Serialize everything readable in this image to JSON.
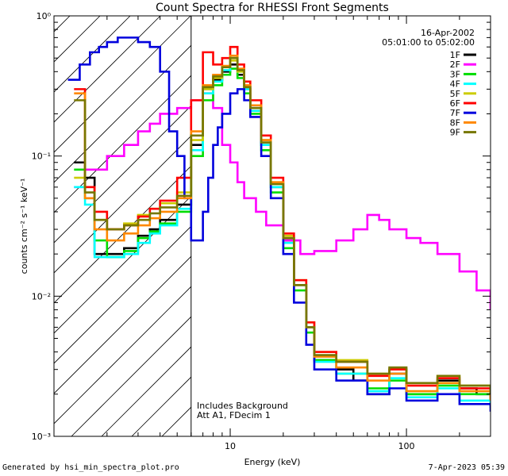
{
  "chart_data": {
    "type": "line",
    "title": "Count Spectra for RHESSI Front Segments",
    "xlabel": "Energy (keV)",
    "ylabel": "counts cm⁻² s⁻¹ keV⁻¹",
    "x_scale": "log",
    "y_scale": "log",
    "xlim": [
      1.0,
      300
    ],
    "ylim": [
      0.001,
      1.0
    ],
    "x_ticks": [
      {
        "value": 10,
        "label": "10"
      },
      {
        "value": 100,
        "label": "100"
      }
    ],
    "y_ticks": [
      {
        "value": 1.0,
        "label": "10⁰"
      },
      {
        "value": 0.1,
        "label": "10⁻¹"
      },
      {
        "value": 0.01,
        "label": "10⁻²"
      },
      {
        "value": 0.001,
        "label": "10⁻³"
      }
    ],
    "hatched_region": {
      "from": 1.0,
      "to": 6.0
    },
    "date": "16-Apr-2002",
    "time_range": "05:01:00 to 05:02:00",
    "annotations": [
      "Includes Background",
      "Att A1, FDecim 1"
    ],
    "legend_position": "top-right",
    "series": [
      {
        "name": "1F",
        "color": "#000000",
        "points": [
          [
            1.3,
            0.09
          ],
          [
            1.5,
            0.07
          ],
          [
            1.7,
            0.02
          ],
          [
            2.0,
            0.02
          ],
          [
            2.5,
            0.022
          ],
          [
            3.0,
            0.027
          ],
          [
            3.5,
            0.03
          ],
          [
            4.0,
            0.035
          ],
          [
            5.0,
            0.045
          ],
          [
            6.0,
            0.12
          ],
          [
            7.0,
            0.3
          ],
          [
            8.0,
            0.35
          ],
          [
            9.0,
            0.4
          ],
          [
            10.0,
            0.45
          ],
          [
            11.0,
            0.38
          ],
          [
            12.0,
            0.3
          ],
          [
            13.0,
            0.22
          ],
          [
            15.0,
            0.12
          ],
          [
            17.0,
            0.06
          ],
          [
            20.0,
            0.025
          ],
          [
            23.0,
            0.012
          ],
          [
            27.0,
            0.006
          ],
          [
            30.0,
            0.0035
          ],
          [
            40.0,
            0.003
          ],
          [
            50.0,
            0.0025
          ],
          [
            60.0,
            0.002
          ],
          [
            80.0,
            0.0028
          ],
          [
            100.0,
            0.002
          ],
          [
            150.0,
            0.0025
          ],
          [
            200.0,
            0.0022
          ],
          [
            250.0,
            0.002
          ],
          [
            300.0,
            0.0018
          ]
        ]
      },
      {
        "name": "2F",
        "color": "#ff00ff",
        "points": [
          [
            1.3,
            0.06
          ],
          [
            1.5,
            0.08
          ],
          [
            2.0,
            0.1
          ],
          [
            2.5,
            0.12
          ],
          [
            3.0,
            0.15
          ],
          [
            3.5,
            0.17
          ],
          [
            4.0,
            0.2
          ],
          [
            5.0,
            0.22
          ],
          [
            6.0,
            0.25
          ],
          [
            7.0,
            0.28
          ],
          [
            8.0,
            0.22
          ],
          [
            9.0,
            0.12
          ],
          [
            10.0,
            0.09
          ],
          [
            11.0,
            0.065
          ],
          [
            12.0,
            0.05
          ],
          [
            14.0,
            0.04
          ],
          [
            16.0,
            0.032
          ],
          [
            20.0,
            0.025
          ],
          [
            25.0,
            0.02
          ],
          [
            30.0,
            0.021
          ],
          [
            40.0,
            0.025
          ],
          [
            50.0,
            0.03
          ],
          [
            60.0,
            0.038
          ],
          [
            70.0,
            0.035
          ],
          [
            80.0,
            0.03
          ],
          [
            100.0,
            0.026
          ],
          [
            120.0,
            0.024
          ],
          [
            150.0,
            0.02
          ],
          [
            200.0,
            0.015
          ],
          [
            250.0,
            0.011
          ],
          [
            300.0,
            0.008
          ]
        ]
      },
      {
        "name": "3F",
        "color": "#00dd00",
        "points": [
          [
            1.3,
            0.08
          ],
          [
            1.5,
            0.05
          ],
          [
            1.7,
            0.025
          ],
          [
            2.0,
            0.019
          ],
          [
            2.5,
            0.021
          ],
          [
            3.0,
            0.026
          ],
          [
            3.5,
            0.029
          ],
          [
            4.0,
            0.033
          ],
          [
            5.0,
            0.04
          ],
          [
            6.0,
            0.1
          ],
          [
            7.0,
            0.25
          ],
          [
            8.0,
            0.32
          ],
          [
            9.0,
            0.38
          ],
          [
            10.0,
            0.42
          ],
          [
            11.0,
            0.36
          ],
          [
            12.0,
            0.28
          ],
          [
            13.0,
            0.2
          ],
          [
            15.0,
            0.11
          ],
          [
            17.0,
            0.055
          ],
          [
            20.0,
            0.022
          ],
          [
            23.0,
            0.011
          ],
          [
            27.0,
            0.0055
          ],
          [
            30.0,
            0.0035
          ],
          [
            40.0,
            0.0028
          ],
          [
            60.0,
            0.0022
          ],
          [
            80.0,
            0.0025
          ],
          [
            100.0,
            0.002
          ],
          [
            150.0,
            0.0023
          ],
          [
            200.0,
            0.002
          ],
          [
            300.0,
            0.0017
          ]
        ]
      },
      {
        "name": "4F",
        "color": "#00ffff",
        "points": [
          [
            1.3,
            0.06
          ],
          [
            1.5,
            0.045
          ],
          [
            1.7,
            0.019
          ],
          [
            2.0,
            0.019
          ],
          [
            2.5,
            0.02
          ],
          [
            3.0,
            0.024
          ],
          [
            3.5,
            0.028
          ],
          [
            4.0,
            0.032
          ],
          [
            5.0,
            0.042
          ],
          [
            6.0,
            0.11
          ],
          [
            7.0,
            0.28
          ],
          [
            8.0,
            0.34
          ],
          [
            9.0,
            0.41
          ],
          [
            10.0,
            0.5
          ],
          [
            11.0,
            0.4
          ],
          [
            12.0,
            0.3
          ],
          [
            13.0,
            0.21
          ],
          [
            15.0,
            0.12
          ],
          [
            17.0,
            0.06
          ],
          [
            20.0,
            0.024
          ],
          [
            23.0,
            0.012
          ],
          [
            27.0,
            0.006
          ],
          [
            30.0,
            0.0034
          ],
          [
            40.0,
            0.0028
          ],
          [
            60.0,
            0.0021
          ],
          [
            80.0,
            0.0026
          ],
          [
            100.0,
            0.0019
          ],
          [
            150.0,
            0.0022
          ],
          [
            200.0,
            0.0018
          ],
          [
            300.0,
            0.0016
          ]
        ]
      },
      {
        "name": "5F",
        "color": "#cccc00",
        "points": [
          [
            1.3,
            0.07
          ],
          [
            1.5,
            0.06
          ],
          [
            1.7,
            0.035
          ],
          [
            2.0,
            0.03
          ],
          [
            2.5,
            0.033
          ],
          [
            3.0,
            0.038
          ],
          [
            3.5,
            0.042
          ],
          [
            4.0,
            0.046
          ],
          [
            5.0,
            0.055
          ],
          [
            6.0,
            0.13
          ],
          [
            7.0,
            0.3
          ],
          [
            8.0,
            0.36
          ],
          [
            9.0,
            0.43
          ],
          [
            10.0,
            0.48
          ],
          [
            11.0,
            0.4
          ],
          [
            12.0,
            0.31
          ],
          [
            13.0,
            0.23
          ],
          [
            15.0,
            0.13
          ],
          [
            17.0,
            0.065
          ],
          [
            20.0,
            0.027
          ],
          [
            23.0,
            0.013
          ],
          [
            27.0,
            0.0065
          ],
          [
            30.0,
            0.004
          ],
          [
            40.0,
            0.0035
          ],
          [
            60.0,
            0.0028
          ],
          [
            80.0,
            0.003
          ],
          [
            100.0,
            0.0024
          ],
          [
            150.0,
            0.0027
          ],
          [
            200.0,
            0.0023
          ],
          [
            300.0,
            0.002
          ]
        ]
      },
      {
        "name": "6F",
        "color": "#ff0000",
        "points": [
          [
            1.3,
            0.3
          ],
          [
            1.5,
            0.06
          ],
          [
            1.7,
            0.04
          ],
          [
            2.0,
            0.03
          ],
          [
            2.5,
            0.032
          ],
          [
            3.0,
            0.037
          ],
          [
            3.5,
            0.042
          ],
          [
            4.0,
            0.048
          ],
          [
            5.0,
            0.07
          ],
          [
            6.0,
            0.25
          ],
          [
            7.0,
            0.55
          ],
          [
            8.0,
            0.45
          ],
          [
            9.0,
            0.5
          ],
          [
            10.0,
            0.6
          ],
          [
            11.0,
            0.45
          ],
          [
            12.0,
            0.34
          ],
          [
            13.0,
            0.25
          ],
          [
            15.0,
            0.14
          ],
          [
            17.0,
            0.07
          ],
          [
            20.0,
            0.028
          ],
          [
            23.0,
            0.013
          ],
          [
            27.0,
            0.0065
          ],
          [
            30.0,
            0.004
          ],
          [
            40.0,
            0.0034
          ],
          [
            60.0,
            0.0027
          ],
          [
            80.0,
            0.003
          ],
          [
            100.0,
            0.0023
          ],
          [
            150.0,
            0.0026
          ],
          [
            200.0,
            0.0022
          ],
          [
            300.0,
            0.0019
          ]
        ]
      },
      {
        "name": "7F",
        "color": "#0000dd",
        "points": [
          [
            1.2,
            0.35
          ],
          [
            1.4,
            0.45
          ],
          [
            1.6,
            0.55
          ],
          [
            1.8,
            0.6
          ],
          [
            2.0,
            0.65
          ],
          [
            2.3,
            0.7
          ],
          [
            2.7,
            0.7
          ],
          [
            3.0,
            0.65
          ],
          [
            3.5,
            0.6
          ],
          [
            4.0,
            0.4
          ],
          [
            4.5,
            0.15
          ],
          [
            5.0,
            0.1
          ],
          [
            5.5,
            0.05
          ],
          [
            6.0,
            0.025
          ],
          [
            7.0,
            0.04
          ],
          [
            7.5,
            0.07
          ],
          [
            8.0,
            0.12
          ],
          [
            8.5,
            0.16
          ],
          [
            9.0,
            0.2
          ],
          [
            10.0,
            0.28
          ],
          [
            11.0,
            0.3
          ],
          [
            12.0,
            0.25
          ],
          [
            13.0,
            0.19
          ],
          [
            15.0,
            0.1
          ],
          [
            17.0,
            0.05
          ],
          [
            20.0,
            0.02
          ],
          [
            23.0,
            0.009
          ],
          [
            27.0,
            0.0045
          ],
          [
            30.0,
            0.003
          ],
          [
            40.0,
            0.0025
          ],
          [
            60.0,
            0.002
          ],
          [
            80.0,
            0.0022
          ],
          [
            100.0,
            0.0018
          ],
          [
            150.0,
            0.002
          ],
          [
            200.0,
            0.0017
          ],
          [
            300.0,
            0.0015
          ]
        ]
      },
      {
        "name": "8F",
        "color": "#ff8800",
        "points": [
          [
            1.3,
            0.28
          ],
          [
            1.5,
            0.05
          ],
          [
            1.7,
            0.03
          ],
          [
            2.0,
            0.025
          ],
          [
            2.5,
            0.028
          ],
          [
            3.0,
            0.032
          ],
          [
            3.5,
            0.036
          ],
          [
            4.0,
            0.04
          ],
          [
            5.0,
            0.05
          ],
          [
            6.0,
            0.15
          ],
          [
            7.0,
            0.32
          ],
          [
            8.0,
            0.38
          ],
          [
            9.0,
            0.44
          ],
          [
            10.0,
            0.52
          ],
          [
            11.0,
            0.42
          ],
          [
            12.0,
            0.32
          ],
          [
            13.0,
            0.23
          ],
          [
            15.0,
            0.13
          ],
          [
            17.0,
            0.065
          ],
          [
            20.0,
            0.026
          ],
          [
            23.0,
            0.012
          ],
          [
            27.0,
            0.006
          ],
          [
            30.0,
            0.0037
          ],
          [
            40.0,
            0.0031
          ],
          [
            60.0,
            0.0025
          ],
          [
            80.0,
            0.0028
          ],
          [
            100.0,
            0.0021
          ],
          [
            150.0,
            0.0024
          ],
          [
            200.0,
            0.0021
          ],
          [
            300.0,
            0.0018
          ]
        ]
      },
      {
        "name": "9F",
        "color": "#777700",
        "points": [
          [
            1.3,
            0.25
          ],
          [
            1.5,
            0.055
          ],
          [
            1.7,
            0.035
          ],
          [
            2.0,
            0.03
          ],
          [
            2.5,
            0.032
          ],
          [
            3.0,
            0.035
          ],
          [
            3.5,
            0.039
          ],
          [
            4.0,
            0.043
          ],
          [
            5.0,
            0.052
          ],
          [
            6.0,
            0.14
          ],
          [
            7.0,
            0.31
          ],
          [
            8.0,
            0.37
          ],
          [
            9.0,
            0.43
          ],
          [
            10.0,
            0.5
          ],
          [
            11.0,
            0.41
          ],
          [
            12.0,
            0.31
          ],
          [
            13.0,
            0.22
          ],
          [
            15.0,
            0.125
          ],
          [
            17.0,
            0.063
          ],
          [
            20.0,
            0.026
          ],
          [
            23.0,
            0.012
          ],
          [
            27.0,
            0.006
          ],
          [
            30.0,
            0.0038
          ],
          [
            40.0,
            0.0034
          ],
          [
            60.0,
            0.0028
          ],
          [
            80.0,
            0.0031
          ],
          [
            100.0,
            0.0024
          ],
          [
            150.0,
            0.0027
          ],
          [
            200.0,
            0.0023
          ],
          [
            300.0,
            0.002
          ]
        ]
      }
    ]
  },
  "footer": {
    "generated_by": "Generated by hsi_min_spectra_plot.pro",
    "timestamp": "7-Apr-2023 05:39"
  }
}
